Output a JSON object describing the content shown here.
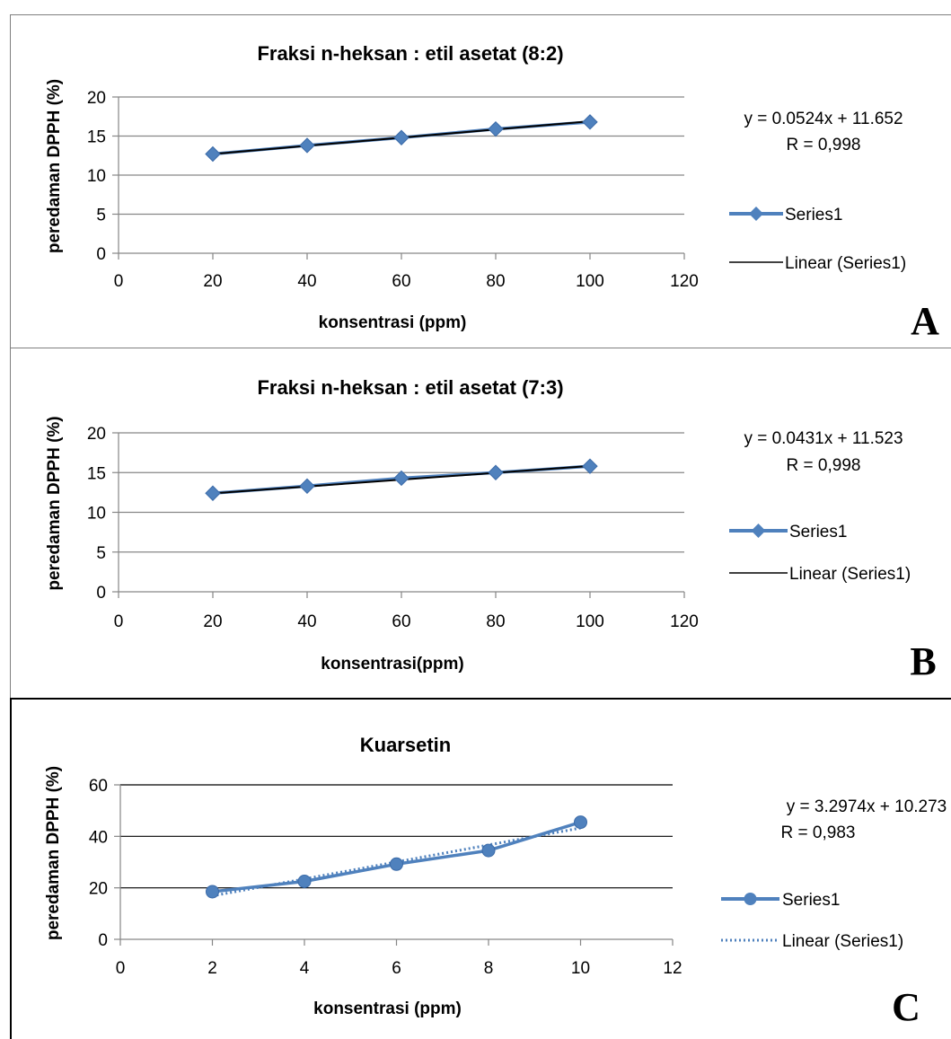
{
  "chart_data": [
    {
      "type": "line",
      "panel_label": "A",
      "title": "Fraksi n-heksan : etil asetat (8:2)",
      "xlabel": "konsentrasi (ppm)",
      "ylabel": "peredaman DPPH (%)",
      "xlim": [
        0,
        120
      ],
      "ylim": [
        0,
        20
      ],
      "xticks": [
        "0",
        "20",
        "40",
        "60",
        "80",
        "100",
        "120"
      ],
      "yticks": [
        "0",
        "5",
        "10",
        "15",
        "20"
      ],
      "grid": "horizontal",
      "legend_position": "right",
      "marker": "diamond",
      "trendline_style": "solid",
      "colors": {
        "series": "#4f81bd",
        "trend": "#000000",
        "grid": "#868686"
      },
      "equation": "y = 0.0524x + 11.652",
      "r_text": "R = 0,998",
      "trendline": {
        "slope": 0.0524,
        "intercept": 11.652
      },
      "series": [
        {
          "name": "Series1",
          "x": [
            20,
            40,
            60,
            80,
            100
          ],
          "values": [
            12.7,
            13.8,
            14.8,
            15.9,
            16.8
          ]
        }
      ],
      "trend_name": "Linear (Series1)"
    },
    {
      "type": "line",
      "panel_label": "B",
      "title": "Fraksi n-heksan : etil asetat (7:3)",
      "xlabel": "konsentrasi(ppm)",
      "ylabel": "peredaman DPPH (%)",
      "xlim": [
        0,
        120
      ],
      "ylim": [
        0,
        20
      ],
      "xticks": [
        "0",
        "20",
        "40",
        "60",
        "80",
        "100",
        "120"
      ],
      "yticks": [
        "0",
        "5",
        "10",
        "15",
        "20"
      ],
      "grid": "horizontal",
      "legend_position": "right",
      "marker": "diamond",
      "trendline_style": "solid",
      "colors": {
        "series": "#4f81bd",
        "trend": "#000000",
        "grid": "#868686"
      },
      "equation": "y = 0.0431x + 11.523",
      "r_text": "R = 0,998",
      "trendline": {
        "slope": 0.0431,
        "intercept": 11.523
      },
      "series": [
        {
          "name": "Series1",
          "x": [
            20,
            40,
            60,
            80,
            100
          ],
          "values": [
            12.4,
            13.3,
            14.3,
            15.0,
            15.8
          ]
        }
      ],
      "trend_name": "Linear (Series1)"
    },
    {
      "type": "line",
      "panel_label": "C",
      "title": "Kuarsetin",
      "xlabel": "konsentrasi (ppm)",
      "ylabel": "peredaman DPPH (%)",
      "xlim": [
        0,
        12
      ],
      "ylim": [
        0,
        60
      ],
      "xticks": [
        "0",
        "2",
        "4",
        "6",
        "8",
        "10",
        "12"
      ],
      "yticks": [
        "0",
        "20",
        "40",
        "60"
      ],
      "grid": "horizontal",
      "legend_position": "right",
      "marker": "circle",
      "trendline_style": "dotted",
      "colors": {
        "series": "#4f81bd",
        "trend": "#4f81bd",
        "grid": "#000000"
      },
      "equation": "y = 3.2974x + 10.273",
      "r_text": "R = 0,983",
      "trendline": {
        "slope": 3.2974,
        "intercept": 10.273
      },
      "series": [
        {
          "name": "Series1",
          "x": [
            2,
            4,
            6,
            8,
            10
          ],
          "values": [
            18.5,
            22.5,
            29.2,
            34.5,
            45.5
          ]
        }
      ],
      "trend_name": "Linear (Series1)"
    }
  ]
}
